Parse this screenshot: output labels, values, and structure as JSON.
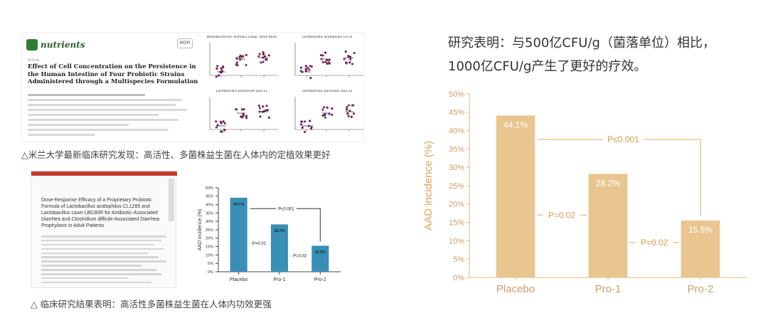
{
  "paper1": {
    "journal": "nutrients",
    "badge": "MDPI",
    "kind": "Article",
    "title": "Effect of Cell Concentration on the Persistence in the Human Intestine of Four Probiotic Strains Administered through a Multispecies Formulation",
    "plots": [
      {
        "title": "Bifidobacterium animalis subsp. lactis BL04"
      },
      {
        "title": "Lactobacillus acidophilus La-14"
      },
      {
        "title": "Lactobacillus plantarum SDZ-11"
      },
      {
        "title": "Lactobacillus paracasei SDZ-22"
      }
    ]
  },
  "caption1": "△米兰大学最新临床研究发现：高活性、多菌株益生菌在人体内的定植效果更好",
  "paper2": {
    "title": "Dose-Response Efficacy of a Proprietary Probiotic Formula of Lactobacillus acidophilus CL1285 and Lactobacillus casei LBC80R for Antibiotic-Associated Diarrhea and Clostridium difficile-Associated Diarrhea Prophylaxis in Adult Patients"
  },
  "caption2": "△ 临床研究结果表明：高活性多菌株益生菌在人体内功效更强",
  "statement": {
    "line1": "研究表明：与500亿CFU/g（菌落单位）相比，",
    "line2": "1000亿CFU/g产生了更好的疗效。"
  },
  "chart_data": [
    {
      "type": "bar",
      "categories": [
        "Placebo",
        "Pro-1",
        "Pro-2"
      ],
      "values": [
        44.1,
        28.2,
        15.5
      ],
      "value_labels": [
        "44.1%",
        "28.2%",
        "15.5%"
      ],
      "ylabel": "AAD incidence (%)",
      "ylim": [
        0,
        50
      ],
      "yticks": [
        "0%",
        "5%",
        "10%",
        "15%",
        "20%",
        "25%",
        "30%",
        "35%",
        "40%",
        "45%",
        "50%"
      ],
      "annotations": [
        "P≤0.001",
        "P=0.02",
        "P=0.02"
      ],
      "bar_color": "#e9c58f",
      "grid": false
    },
    {
      "type": "bar",
      "categories": [
        "Placebo",
        "Pro-1",
        "Pro-2"
      ],
      "values": [
        44.1,
        28.2,
        15.5
      ],
      "value_labels": [
        "44.1%",
        "28.2%",
        "15.5%"
      ],
      "ylabel": "AAD incidence (%)",
      "ylim": [
        0,
        50
      ],
      "yticks": [
        "0%",
        "5%",
        "10%",
        "15%",
        "20%",
        "25%",
        "30%",
        "35%",
        "40%",
        "45%",
        "50%"
      ],
      "annotations": [
        "P≤0.001",
        "P=0.02",
        "P=0.02"
      ],
      "bar_color": "#3a8fb7",
      "grid": false
    }
  ]
}
